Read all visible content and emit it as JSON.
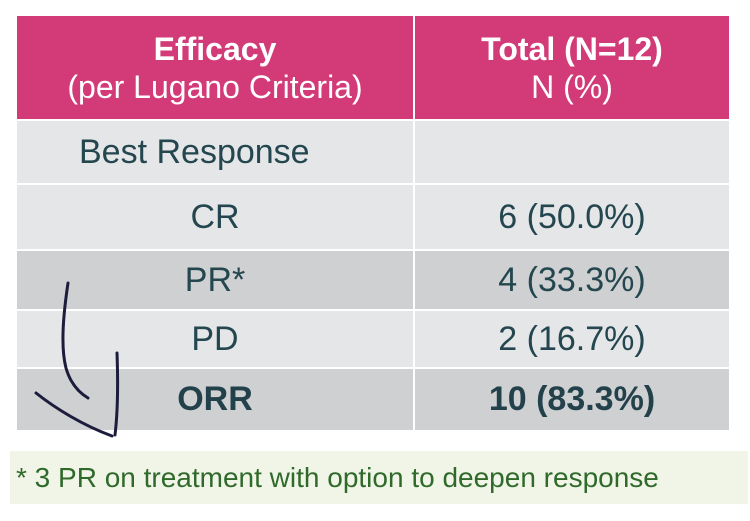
{
  "table": {
    "header": {
      "col1_line1": "Efficacy",
      "col1_line2": "(per Lugano Criteria)",
      "col2_line1": "Total (N=12)",
      "col2_line2": "N (%)"
    },
    "rows": [
      {
        "label": "Best Response",
        "value": ""
      },
      {
        "label": "CR",
        "value": "6 (50.0%)"
      },
      {
        "label": "PR*",
        "value": "4 (33.3%)"
      },
      {
        "label": "PD",
        "value": "2 (16.7%)"
      },
      {
        "label": "ORR",
        "value": "10 (83.3%)"
      }
    ]
  },
  "footnote": "* 3 PR on treatment with option to deepen response",
  "colors": {
    "header_bg": "#d23b78",
    "row_light": "#e5e6e8",
    "row_dark": "#cfd0d2",
    "footnote_text": "#2f6a2b",
    "ink": "#1c1c3c"
  },
  "annotation": "hand-drawn-arrow"
}
